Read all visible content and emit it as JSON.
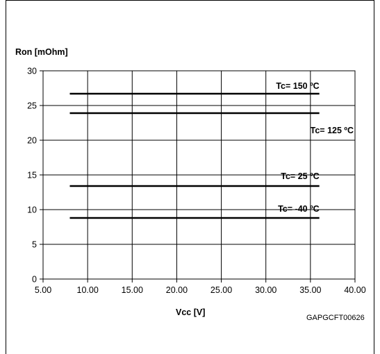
{
  "chart_data": {
    "type": "line",
    "title": "",
    "ylabel": "Ron [mOhm]",
    "xlabel": "Vcc [V]",
    "figure_code": "GAPGCFT00626",
    "xlim": [
      5.0,
      40.0
    ],
    "ylim": [
      0,
      30
    ],
    "x_ticks": [
      "5.00",
      "10.00",
      "15.00",
      "20.00",
      "25.00",
      "30.00",
      "35.00",
      "40.00"
    ],
    "y_ticks": [
      "0",
      "5",
      "10",
      "15",
      "20",
      "25",
      "30"
    ],
    "x_tick_values": [
      5,
      10,
      15,
      20,
      25,
      30,
      35,
      40
    ],
    "y_tick_values": [
      0,
      5,
      10,
      15,
      20,
      25,
      30
    ],
    "grid": true,
    "series": [
      {
        "name": "Tc= 150 ºC",
        "x": [
          8.0,
          36.0
        ],
        "values": [
          26.7,
          26.7
        ]
      },
      {
        "name": "Tc= 125 ºC",
        "x": [
          8.0,
          36.0
        ],
        "values": [
          23.9,
          23.9
        ]
      },
      {
        "name": "Tc= 25 ºC",
        "x": [
          8.0,
          36.0
        ],
        "values": [
          13.4,
          13.4
        ]
      },
      {
        "name": "Tc= -40 ºC",
        "x": [
          8.0,
          36.0
        ],
        "values": [
          8.8,
          8.8
        ]
      }
    ],
    "colors": {
      "line": "#000000",
      "grid": "#000000"
    }
  }
}
